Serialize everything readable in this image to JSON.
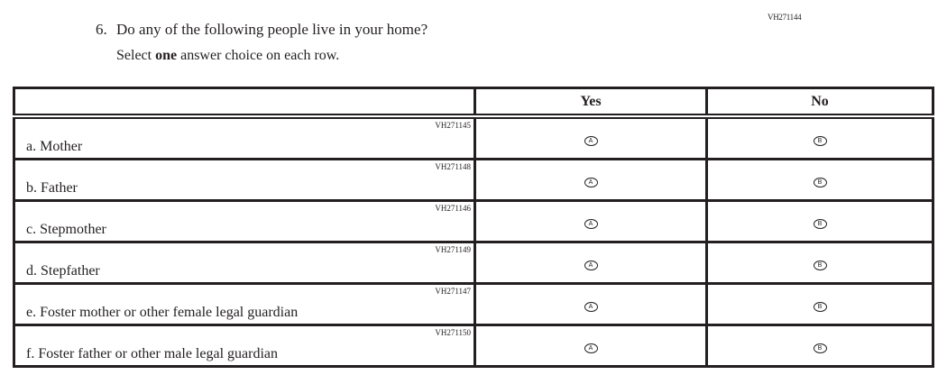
{
  "question": {
    "id": "VH271144",
    "number": "6.",
    "text": "Do any of the following people live in your home?",
    "instruction_pre": "Select ",
    "instruction_bold": "one",
    "instruction_post": " answer choice on each row."
  },
  "columns": [
    "",
    "Yes",
    "No"
  ],
  "rows": [
    {
      "id": "VH271145",
      "label": "a.  Mother",
      "yes": "A",
      "no": "B"
    },
    {
      "id": "VH271148",
      "label": "b.  Father",
      "yes": "A",
      "no": "B"
    },
    {
      "id": "VH271146",
      "label": "c.  Stepmother",
      "yes": "A",
      "no": "B"
    },
    {
      "id": "VH271149",
      "label": "d.  Stepfather",
      "yes": "A",
      "no": "B"
    },
    {
      "id": "VH271147",
      "label": "e.  Foster mother or other female legal guardian",
      "yes": "A",
      "no": "B"
    },
    {
      "id": "VH271150",
      "label": "f.  Foster father or other male legal guardian",
      "yes": "A",
      "no": "B"
    }
  ]
}
